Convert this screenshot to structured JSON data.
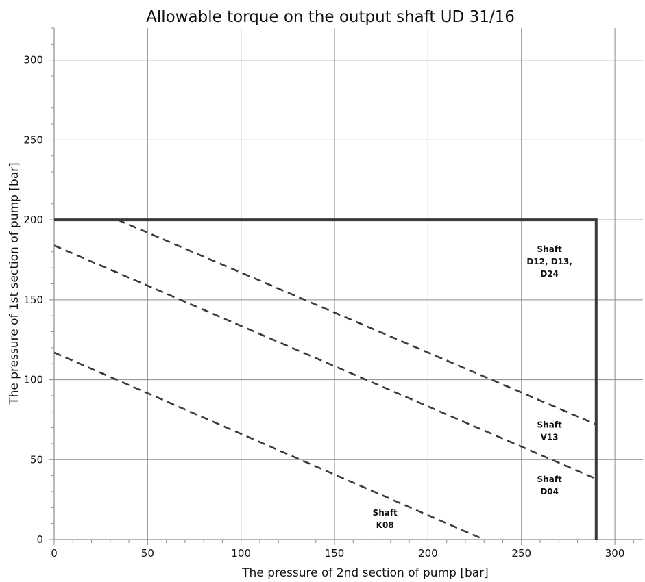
{
  "chart_data": {
    "type": "line",
    "title": "Allowable torque on the output shaft UD 31/16",
    "xlabel": "The pressure of 2nd section of pump [bar]",
    "ylabel": "The pressure of 1st section of pump [bar]",
    "xlim": [
      0,
      315
    ],
    "ylim": [
      0,
      320
    ],
    "x_ticks": [
      0,
      50,
      100,
      150,
      200,
      250,
      300
    ],
    "y_ticks": [
      0,
      50,
      100,
      150,
      200,
      250,
      300
    ],
    "x_minor_step": 10,
    "y_minor_step": 10,
    "grid": true,
    "legend": "none",
    "series": [
      {
        "style": "solid",
        "color": "#3a3a3a",
        "points": [
          [
            0,
            200
          ],
          [
            290,
            200
          ],
          [
            290,
            0
          ]
        ]
      },
      {
        "style": "dashed",
        "color": "#3a3a3a",
        "points": [
          [
            34,
            200
          ],
          [
            290,
            72
          ]
        ]
      },
      {
        "style": "dashed",
        "color": "#3a3a3a",
        "points": [
          [
            0,
            184
          ],
          [
            290,
            38
          ]
        ]
      },
      {
        "style": "dashed",
        "color": "#3a3a3a",
        "points": [
          [
            0,
            117
          ],
          [
            228,
            1
          ]
        ]
      }
    ],
    "annotations": [
      {
        "lines": [
          "Shaft",
          "D12, D13,",
          "D24"
        ],
        "x": 265,
        "y": 180
      },
      {
        "lines": [
          "Shaft",
          "V13"
        ],
        "x": 265,
        "y": 70
      },
      {
        "lines": [
          "Shaft",
          "D04"
        ],
        "x": 265,
        "y": 36
      },
      {
        "lines": [
          "Shaft",
          "K08"
        ],
        "x": 177,
        "y": 15
      }
    ]
  }
}
